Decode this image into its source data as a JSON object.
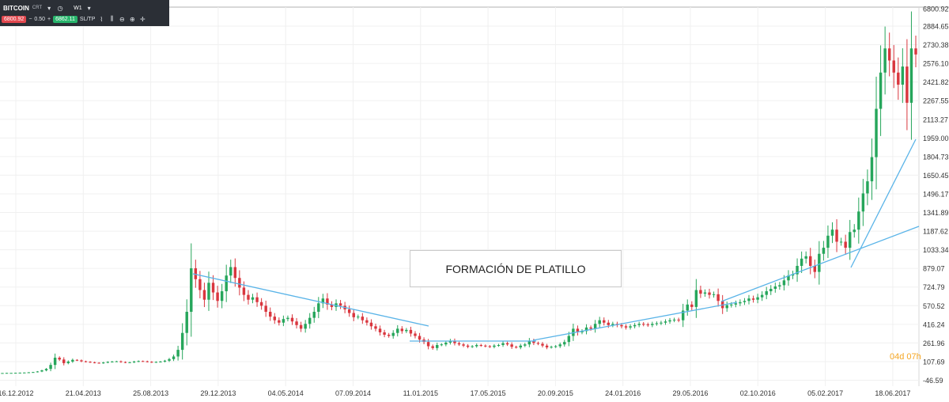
{
  "toolbar": {
    "symbol": "BITCOIN",
    "symbol_suffix": "CRT",
    "timeframe": "W1",
    "sell_price": "6800.92",
    "minus": "−",
    "amount": "0.50",
    "plus": "+",
    "buy_price": "6862.11",
    "sltp_label": "SL/TP",
    "icons": [
      "clock-icon",
      "line-chart-icon",
      "candles-icon",
      "zoom-out-icon",
      "zoom-in-icon",
      "crosshair-icon"
    ]
  },
  "annotation_label": "FORMACIÓN DE PLATILLO",
  "countdown": "04d 07h",
  "chart_data": {
    "type": "candlestick",
    "price_axis_labels": [
      "6800.92",
      "2884.65",
      "2730.38",
      "2576.10",
      "2421.82",
      "2267.55",
      "2113.27",
      "1959.00",
      "1804.73",
      "1650.45",
      "1496.17",
      "1341.89",
      "1187.62",
      "1033.34",
      "879.07",
      "724.79",
      "570.52",
      "416.24",
      "261.96",
      "107.69",
      "-46.59"
    ],
    "date_axis_labels": [
      "16.12.2012",
      "21.04.2013",
      "25.08.2013",
      "29.12.2013",
      "04.05.2014",
      "07.09.2014",
      "11.01.2015",
      "17.05.2015",
      "20.09.2015",
      "24.01.2016",
      "29.05.2016",
      "02.10.2016",
      "05.02.2017",
      "18.06.2017"
    ],
    "colors": {
      "up": "#26a65b",
      "down": "#d9363e",
      "trendline": "#5ab4e8",
      "grid": "#f0f0f0"
    },
    "grid": true,
    "closes": [
      13,
      14,
      14,
      15,
      16,
      17,
      19,
      21,
      26,
      35,
      47,
      80,
      140,
      125,
      95,
      108,
      122,
      118,
      110,
      106,
      102,
      98,
      95,
      100,
      105,
      108,
      110,
      104,
      100,
      102,
      108,
      112,
      110,
      106,
      102,
      105,
      108,
      115,
      128,
      150,
      205,
      345,
      520,
      880,
      790,
      700,
      620,
      760,
      680,
      610,
      690,
      820,
      890,
      800,
      720,
      660,
      620,
      640,
      600,
      570,
      520,
      480,
      450,
      430,
      460,
      470,
      440,
      410,
      380,
      420,
      470,
      520,
      590,
      630,
      580,
      560,
      590,
      570,
      540,
      510,
      475,
      480,
      450,
      430,
      400,
      380,
      350,
      330,
      320,
      345,
      380,
      360,
      370,
      340,
      320,
      290,
      270,
      235,
      220,
      245,
      250,
      265,
      280,
      260,
      250,
      240,
      230,
      235,
      245,
      240,
      235,
      230,
      240,
      245,
      260,
      250,
      230,
      225,
      240,
      250,
      280,
      262,
      255,
      240,
      225,
      230,
      235,
      250,
      270,
      320,
      380,
      350,
      360,
      390,
      380,
      420,
      450,
      430,
      410,
      420,
      410,
      400,
      390,
      400,
      410,
      420,
      415,
      410,
      420,
      425,
      430,
      440,
      450,
      455,
      450,
      530,
      580,
      560,
      700,
      670,
      680,
      660,
      665,
      610,
      550,
      575,
      580,
      590,
      600,
      610,
      630,
      620,
      640,
      660,
      690,
      710,
      730,
      740,
      780,
      820,
      830,
      900,
      960,
      980,
      900,
      850,
      1000,
      1050,
      1150,
      1200,
      1100,
      1100,
      1050,
      1180,
      1200,
      1350,
      1500,
      1600,
      1800,
      2200,
      2500,
      2700,
      2600,
      2500,
      2400,
      2550,
      2250,
      2700,
      2650
    ]
  }
}
